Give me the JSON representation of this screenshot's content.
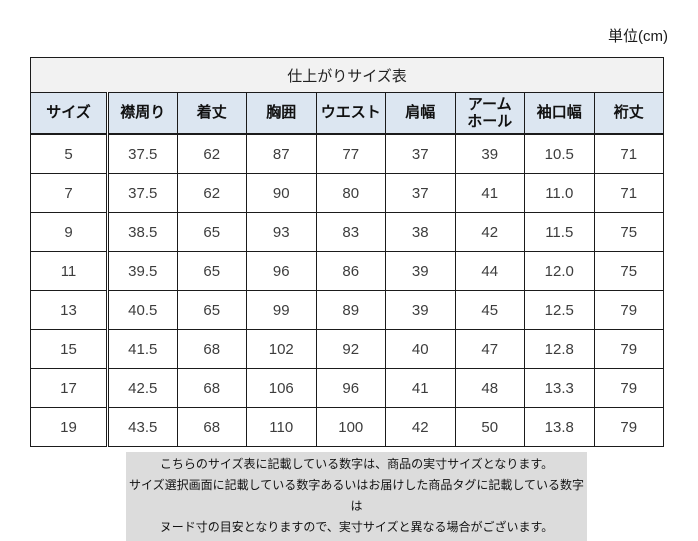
{
  "unit_label": "単位(cm)",
  "table": {
    "title": "仕上がりサイズ表",
    "columns": [
      "サイズ",
      "襟周り",
      "着丈",
      "胸囲",
      "ウエスト",
      "肩幅",
      "アーム\nホール",
      "袖口幅",
      "裄丈"
    ],
    "rows": [
      [
        "5",
        "37.5",
        "62",
        "87",
        "77",
        "37",
        "39",
        "10.5",
        "71"
      ],
      [
        "7",
        "37.5",
        "62",
        "90",
        "80",
        "37",
        "41",
        "11.0",
        "71"
      ],
      [
        "9",
        "38.5",
        "65",
        "93",
        "83",
        "38",
        "42",
        "11.5",
        "75"
      ],
      [
        "11",
        "39.5",
        "65",
        "96",
        "86",
        "39",
        "44",
        "12.0",
        "75"
      ],
      [
        "13",
        "40.5",
        "65",
        "99",
        "89",
        "39",
        "45",
        "12.5",
        "79"
      ],
      [
        "15",
        "41.5",
        "68",
        "102",
        "92",
        "40",
        "47",
        "12.8",
        "79"
      ],
      [
        "17",
        "42.5",
        "68",
        "106",
        "96",
        "41",
        "48",
        "13.3",
        "79"
      ],
      [
        "19",
        "43.5",
        "68",
        "110",
        "100",
        "42",
        "50",
        "13.8",
        "79"
      ]
    ]
  },
  "note": {
    "lines": [
      "こちらのサイズ表に記載している数字は、商品の実寸サイズとなります。",
      "サイズ選択画面に記載している数字あるいはお届けした商品タグに記載している数字は",
      "ヌード寸の目安となりますので、実寸サイズと異なる場合がございます。"
    ]
  },
  "colors": {
    "header_bg": "#dce6f1",
    "title_bg": "#f2f2f2",
    "note_bg": "#dcdcdc",
    "border": "#1b1b1b"
  }
}
